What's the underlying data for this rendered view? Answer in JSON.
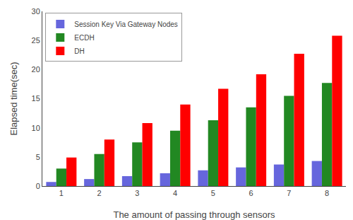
{
  "chart_data": {
    "type": "bar",
    "categories": [
      1,
      2,
      3,
      4,
      5,
      6,
      7,
      8
    ],
    "series": [
      {
        "name": "Session Key Via Gateway Nodes",
        "color": "#6666dd",
        "values": [
          0.7,
          1.2,
          1.7,
          2.2,
          2.7,
          3.2,
          3.7,
          4.3
        ]
      },
      {
        "name": "ECDH",
        "color": "#228822",
        "values": [
          3.0,
          5.5,
          7.5,
          9.5,
          11.3,
          13.5,
          15.5,
          17.7
        ]
      },
      {
        "name": "DH",
        "color": "#ff0000",
        "values": [
          4.9,
          8.0,
          10.8,
          14.0,
          16.7,
          19.2,
          22.7,
          25.8
        ]
      }
    ],
    "xlabel": "The amount of passing through sensors",
    "ylabel": "Elapsed time(sec)",
    "ylim": [
      0,
      30
    ],
    "yticks": [
      0,
      5,
      10,
      15,
      20,
      25,
      30
    ],
    "grid": false,
    "legend": "upper left"
  }
}
